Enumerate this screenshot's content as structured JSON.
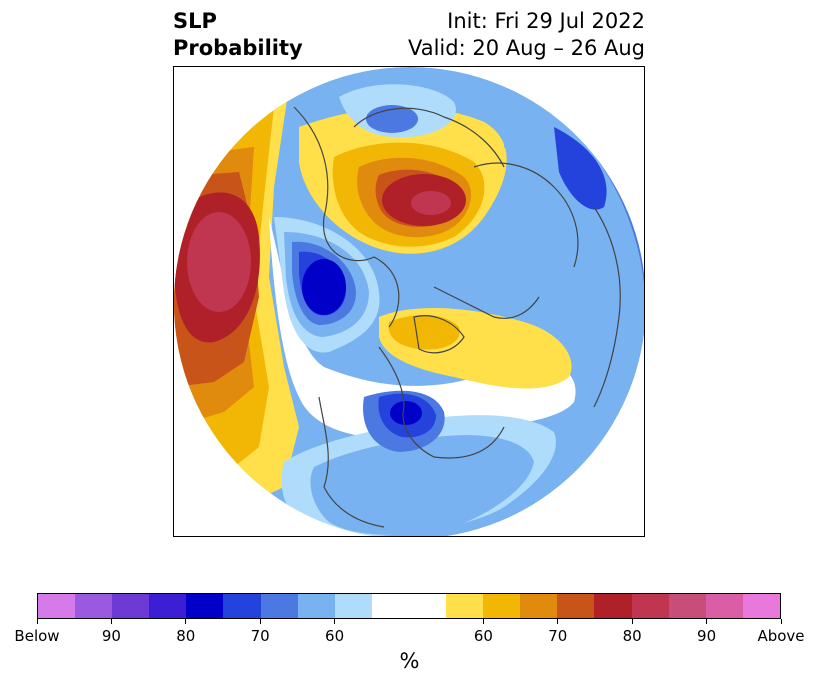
{
  "header": {
    "left_line1": "SLP",
    "left_line2": "Probability",
    "right_line1": "Init: Fri 29 Jul 2022",
    "right_line2": "Valid: 20 Aug – 26 Aug"
  },
  "colorbar": {
    "unit": "%",
    "colors": [
      "#d57ae8",
      "#9b59e0",
      "#6e3ad6",
      "#3c1ed4",
      "#0000c8",
      "#2442dc",
      "#4c78e2",
      "#78b2f0",
      "#aedcfa",
      "#ffffff",
      "#ffffff",
      "#ffe04a",
      "#f2b705",
      "#e08a0e",
      "#c8541a",
      "#b02028",
      "#c03650",
      "#c84e7a",
      "#da5ea6",
      "#e878dc"
    ],
    "ticks": [
      {
        "label": "Below",
        "seg": 0
      },
      {
        "label": "90",
        "seg": 2
      },
      {
        "label": "80",
        "seg": 4
      },
      {
        "label": "70",
        "seg": 6
      },
      {
        "label": "60",
        "seg": 8
      },
      {
        "label": "60",
        "seg": 12
      },
      {
        "label": "70",
        "seg": 14
      },
      {
        "label": "80",
        "seg": 16
      },
      {
        "label": "90",
        "seg": 18
      },
      {
        "label": "Above",
        "seg": 20
      }
    ]
  },
  "map": {
    "projection": "north-polar-stereographic",
    "category_colors": {
      "below_60": "#aedcfa",
      "below_65": "#78b2f0",
      "below_70": "#4c78e2",
      "below_75": "#2442dc",
      "below_80": "#0000c8",
      "above_60": "#ffe04a",
      "above_65": "#f2b705",
      "above_70": "#e08a0e",
      "above_75": "#c8541a",
      "above_80": "#b02028",
      "above_85": "#c03650"
    }
  }
}
